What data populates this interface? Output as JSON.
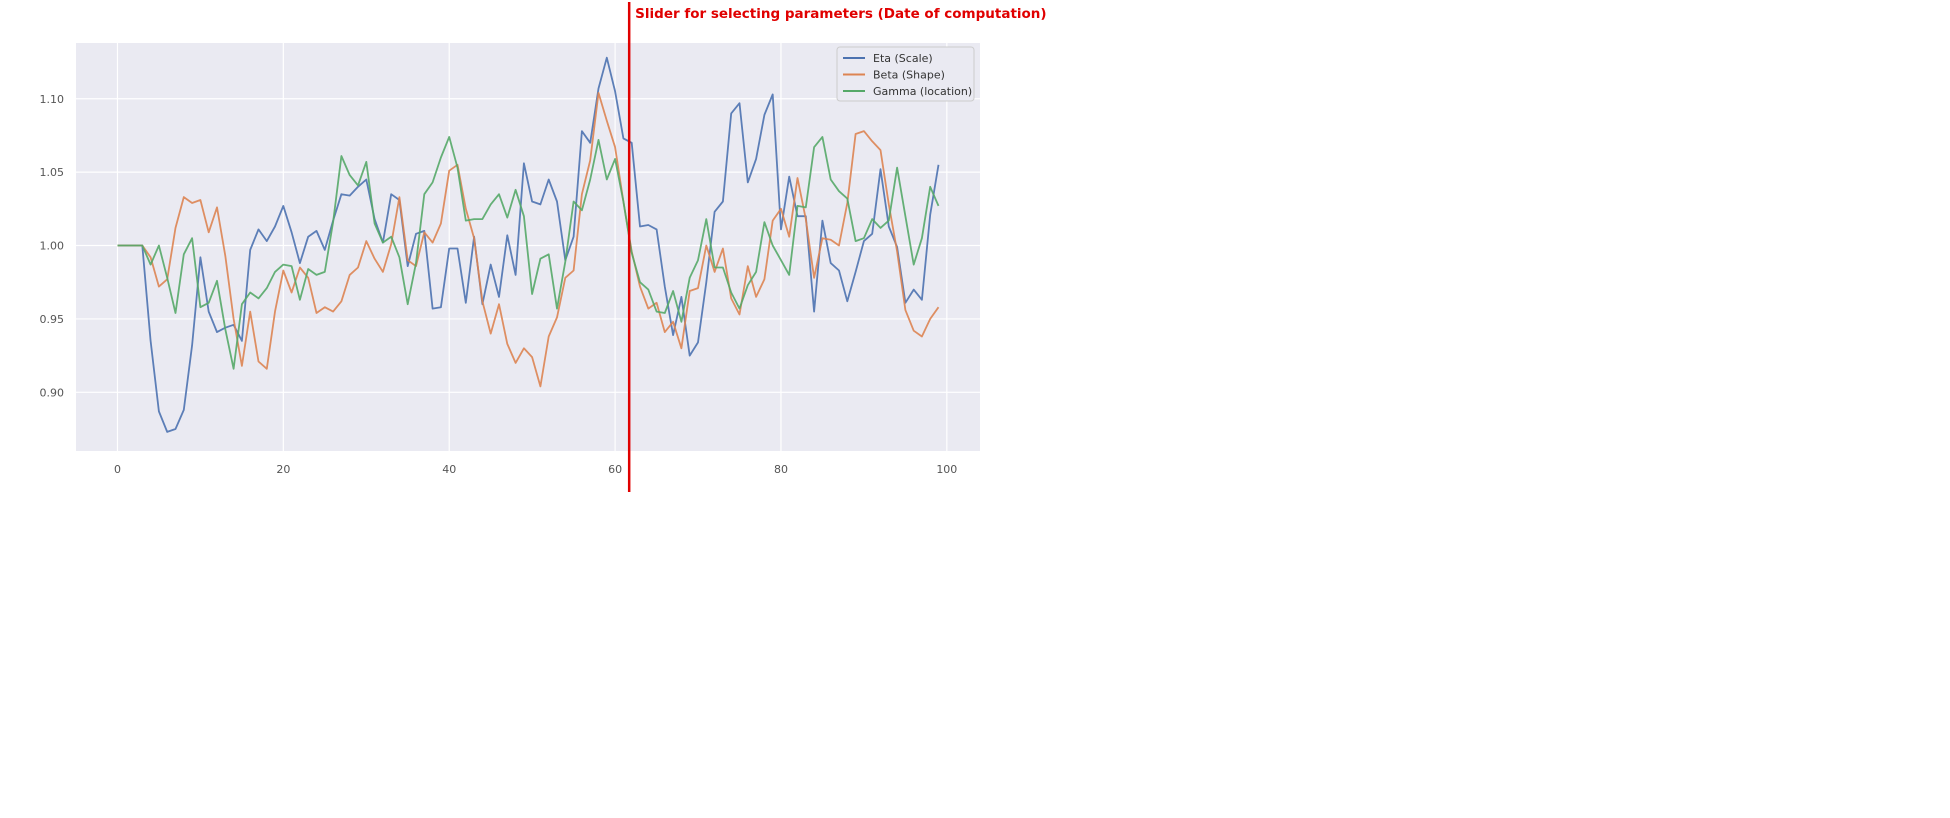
{
  "annotation": {
    "text": "Slider for selecting parameters (Date of computation)",
    "color": "#e00000",
    "slider_x": 61.7
  },
  "colors": {
    "plot_background": "#eaeaf2",
    "grid": "#ffffff",
    "legend_background": "#eaeaf2",
    "legend_border": "#cccccc"
  },
  "chart_data": {
    "type": "line",
    "title": "",
    "xlabel": "",
    "ylabel": "",
    "xlim": [
      -5,
      104
    ],
    "ylim": [
      0.86,
      1.138
    ],
    "xticks": [
      0,
      20,
      40,
      60,
      80,
      100
    ],
    "xtick_labels": [
      "0",
      "20",
      "40",
      "60",
      "80",
      "100"
    ],
    "yticks": [
      0.9,
      0.95,
      1.0,
      1.05,
      1.1
    ],
    "ytick_labels": [
      "0.90",
      "0.95",
      "1.00",
      "1.05",
      "1.10"
    ],
    "grid": true,
    "legend_position": "top-right",
    "x": [
      0,
      1,
      2,
      3,
      4,
      5,
      6,
      7,
      8,
      9,
      10,
      11,
      12,
      13,
      14,
      15,
      16,
      17,
      18,
      19,
      20,
      21,
      22,
      23,
      24,
      25,
      26,
      27,
      28,
      29,
      30,
      31,
      32,
      33,
      34,
      35,
      36,
      37,
      38,
      39,
      40,
      41,
      42,
      43,
      44,
      45,
      46,
      47,
      48,
      49,
      50,
      51,
      52,
      53,
      54,
      55,
      56,
      57,
      58,
      59,
      60,
      61,
      62,
      63,
      64,
      65,
      66,
      67,
      68,
      69,
      70,
      71,
      72,
      73,
      74,
      75,
      76,
      77,
      78,
      79,
      80,
      81,
      82,
      83,
      84,
      85,
      86,
      87,
      88,
      89,
      90,
      91,
      92,
      93,
      94,
      95,
      96,
      97,
      98,
      99
    ],
    "series": [
      {
        "name": "Eta (Scale)",
        "color": "#4c72b0",
        "values": [
          1.0,
          1.0,
          1.0,
          1.0,
          0.935,
          0.887,
          0.873,
          0.875,
          0.888,
          0.932,
          0.992,
          0.955,
          0.941,
          0.944,
          0.946,
          0.935,
          0.997,
          1.011,
          1.003,
          1.013,
          1.027,
          1.009,
          0.988,
          1.006,
          1.01,
          0.997,
          1.017,
          1.035,
          1.034,
          1.04,
          1.045,
          1.018,
          1.002,
          1.035,
          1.031,
          0.986,
          1.008,
          1.01,
          0.957,
          0.958,
          0.998,
          0.998,
          0.961,
          1.006,
          0.96,
          0.987,
          0.965,
          1.007,
          0.98,
          1.056,
          1.03,
          1.028,
          1.045,
          1.03,
          0.99,
          1.006,
          1.078,
          1.07,
          1.107,
          1.128,
          1.105,
          1.073,
          1.07,
          1.013,
          1.014,
          1.011,
          0.972,
          0.939,
          0.965,
          0.925,
          0.934,
          0.975,
          1.023,
          1.03,
          1.09,
          1.097,
          1.043,
          1.059,
          1.089,
          1.103,
          1.011,
          1.047,
          1.02,
          1.02,
          0.955,
          1.017,
          0.988,
          0.983,
          0.962,
          0.982,
          1.003,
          1.008,
          1.052,
          1.013,
          0.999,
          0.961,
          0.97,
          0.963,
          1.021,
          1.055
        ]
      },
      {
        "name": "Beta (Shape)",
        "color": "#dd8452",
        "values": [
          1.0,
          1.0,
          1.0,
          1.0,
          0.992,
          0.972,
          0.977,
          1.012,
          1.033,
          1.029,
          1.031,
          1.009,
          1.026,
          0.993,
          0.95,
          0.918,
          0.955,
          0.921,
          0.916,
          0.955,
          0.983,
          0.968,
          0.985,
          0.978,
          0.954,
          0.958,
          0.955,
          0.962,
          0.98,
          0.985,
          1.003,
          0.991,
          0.982,
          1.001,
          1.033,
          0.99,
          0.986,
          1.009,
          1.002,
          1.015,
          1.051,
          1.055,
          1.025,
          1.005,
          0.962,
          0.94,
          0.96,
          0.933,
          0.92,
          0.93,
          0.924,
          0.904,
          0.938,
          0.951,
          0.978,
          0.983,
          1.035,
          1.058,
          1.104,
          1.085,
          1.067,
          1.03,
          0.996,
          0.972,
          0.957,
          0.961,
          0.941,
          0.948,
          0.93,
          0.969,
          0.971,
          1.0,
          0.982,
          0.998,
          0.964,
          0.953,
          0.986,
          0.965,
          0.977,
          1.017,
          1.025,
          1.006,
          1.046,
          1.018,
          0.978,
          1.005,
          1.004,
          1.0,
          1.029,
          1.076,
          1.078,
          1.071,
          1.065,
          1.028,
          0.996,
          0.956,
          0.942,
          0.938,
          0.95,
          0.958
        ]
      },
      {
        "name": "Gamma (location)",
        "color": "#55a868",
        "values": [
          1.0,
          1.0,
          1.0,
          1.0,
          0.987,
          1.0,
          0.978,
          0.954,
          0.994,
          1.005,
          0.958,
          0.961,
          0.976,
          0.943,
          0.916,
          0.96,
          0.968,
          0.964,
          0.971,
          0.982,
          0.987,
          0.986,
          0.963,
          0.984,
          0.98,
          0.982,
          1.016,
          1.061,
          1.048,
          1.041,
          1.057,
          1.015,
          1.002,
          1.006,
          0.992,
          0.96,
          0.988,
          1.035,
          1.043,
          1.06,
          1.074,
          1.053,
          1.017,
          1.018,
          1.018,
          1.028,
          1.035,
          1.019,
          1.038,
          1.02,
          0.967,
          0.991,
          0.994,
          0.957,
          0.989,
          1.03,
          1.024,
          1.045,
          1.072,
          1.045,
          1.059,
          1.03,
          0.995,
          0.975,
          0.97,
          0.955,
          0.954,
          0.969,
          0.948,
          0.978,
          0.99,
          1.018,
          0.985,
          0.985,
          0.968,
          0.957,
          0.973,
          0.982,
          1.016,
          1.0,
          0.99,
          0.98,
          1.027,
          1.026,
          1.067,
          1.074,
          1.045,
          1.037,
          1.032,
          1.003,
          1.005,
          1.018,
          1.012,
          1.017,
          1.053,
          1.02,
          0.987,
          1.005,
          1.04,
          1.027
        ]
      }
    ]
  }
}
